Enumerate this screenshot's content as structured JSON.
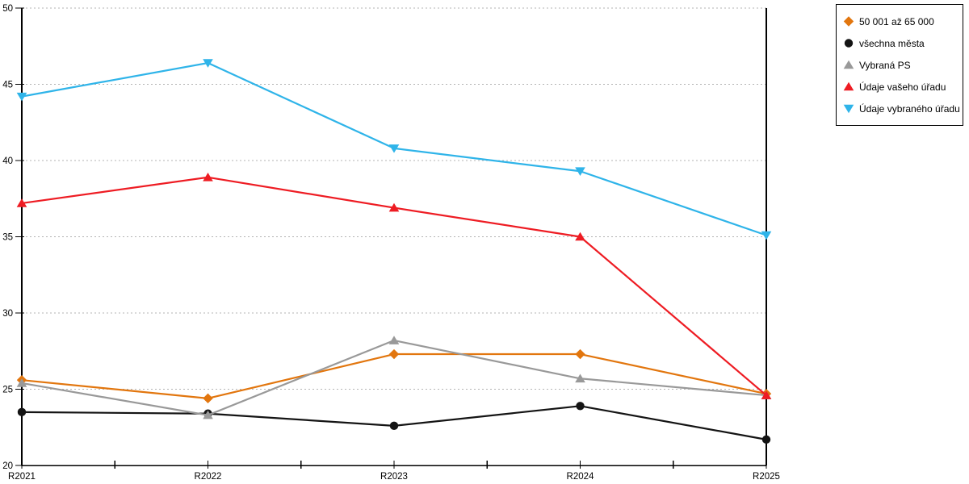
{
  "chart_data": {
    "type": "line",
    "title": "",
    "xlabel": "",
    "ylabel": "",
    "categories": [
      "R2021",
      "R2022",
      "R2023",
      "R2024",
      "R2025"
    ],
    "series": [
      {
        "name": "50 001 až 65 000",
        "color": "#e2760e",
        "marker": "diamond",
        "values": [
          25.6,
          24.4,
          27.3,
          27.3,
          24.7
        ]
      },
      {
        "name": "všechna města",
        "color": "#141414",
        "marker": "circle",
        "values": [
          23.5,
          23.4,
          22.6,
          23.9,
          21.7
        ]
      },
      {
        "name": "Vybraná PS",
        "color": "#999999",
        "marker": "triangle-up",
        "values": [
          25.4,
          23.3,
          28.2,
          25.7,
          24.6
        ]
      },
      {
        "name": "Údaje vašeho úřadu",
        "color": "#ee1c23",
        "marker": "triangle-up",
        "values": [
          37.2,
          38.9,
          36.9,
          35.0,
          24.6
        ]
      },
      {
        "name": "Údaje vybraného úřadu",
        "color": "#2fb4e9",
        "marker": "triangle-down",
        "values": [
          44.2,
          46.4,
          40.8,
          39.3,
          35.1
        ]
      }
    ],
    "ylim": [
      20,
      50
    ],
    "yticks": [
      20,
      25,
      30,
      35,
      40,
      45,
      50
    ],
    "grid": "horizontal-dotted",
    "gridline_color": "#b3b3b3",
    "axis_color": "#000000",
    "legend_position": "top-right-outside",
    "minor_x_ticks_between_categories": true
  }
}
